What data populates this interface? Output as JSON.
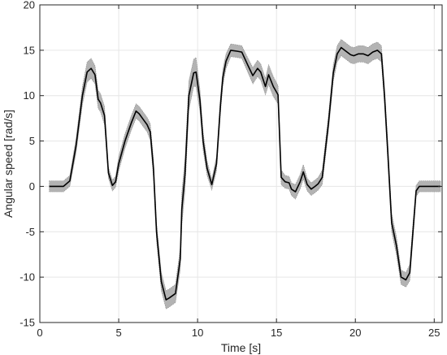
{
  "chart_data": {
    "type": "line",
    "title": "",
    "xlabel": "Time [s]",
    "ylabel": "Angular speed [rad/s]",
    "xlim": [
      0,
      25.5
    ],
    "ylim": [
      -15,
      20
    ],
    "xticks": [
      0,
      5,
      10,
      15,
      20,
      25
    ],
    "yticks": [
      -15,
      -10,
      -5,
      0,
      5,
      10,
      15,
      20
    ],
    "grid": true,
    "legend": "none",
    "colors": {
      "line": "#000000",
      "band": "#a6a6a6",
      "grid": "#e6e6e6",
      "axis": "#262626"
    },
    "series": [
      {
        "x": [
          0.6,
          1.5,
          1.9,
          2.3,
          2.7,
          3.0,
          3.25,
          3.5,
          3.7,
          3.85,
          4.1,
          4.35,
          4.6,
          4.8,
          5.0,
          5.4,
          5.8,
          6.1,
          6.3,
          6.55,
          6.8,
          7.0,
          7.2,
          7.4,
          7.7,
          8.0,
          8.2,
          8.6,
          8.9,
          9.0,
          9.2,
          9.45,
          9.75,
          9.9,
          10.15,
          10.35,
          10.6,
          10.9,
          11.2,
          11.45,
          11.6,
          11.8,
          12.1,
          12.5,
          12.8,
          13.2,
          13.5,
          13.8,
          14.0,
          14.3,
          14.5,
          14.8,
          15.1,
          15.3,
          15.55,
          15.8,
          15.95,
          16.2,
          16.5,
          16.7,
          16.95,
          17.2,
          17.45,
          17.65,
          17.9,
          18.3,
          18.6,
          18.85,
          19.1,
          19.4,
          19.7,
          19.9,
          20.2,
          20.5,
          20.8,
          21.1,
          21.4,
          21.65,
          21.85,
          22.05,
          22.3,
          22.6,
          22.9,
          23.2,
          23.45,
          23.65,
          23.85,
          24.05,
          24.3,
          24.6,
          25.0,
          25.4
        ],
        "y": [
          0,
          0,
          0.6,
          4.5,
          10.0,
          12.6,
          13.0,
          12.3,
          9.6,
          9.2,
          7.8,
          1.5,
          0.1,
          0.5,
          2.5,
          5.0,
          7.0,
          8.3,
          8.0,
          7.4,
          6.8,
          6.0,
          2.0,
          -5.0,
          -10.5,
          -12.5,
          -12.3,
          -11.8,
          -8.0,
          -2.5,
          1.3,
          10.0,
          12.5,
          12.6,
          9.5,
          5.0,
          2.0,
          0.2,
          2.5,
          9.0,
          12.0,
          13.8,
          15.0,
          14.9,
          14.8,
          13.3,
          12.2,
          13.0,
          12.6,
          11.0,
          12.3,
          11.0,
          10.1,
          1.0,
          0.5,
          0.4,
          -0.3,
          -0.6,
          0.5,
          1.6,
          0.2,
          -0.3,
          0.0,
          0.3,
          1.0,
          7.0,
          12.5,
          14.6,
          15.3,
          14.9,
          14.5,
          14.4,
          14.6,
          14.6,
          14.4,
          14.8,
          15.0,
          14.6,
          10.0,
          4.0,
          -4.0,
          -6.5,
          -10.0,
          -10.3,
          -9.5,
          -5.0,
          -0.5,
          0.0,
          0.0,
          0.0,
          0.0,
          0.0
        ],
        "band": [
          0.6,
          0.6,
          0.6,
          0.8,
          1.0,
          1.1,
          1.1,
          1.0,
          1.0,
          1.0,
          1.0,
          0.6,
          0.6,
          0.6,
          0.8,
          0.8,
          0.8,
          0.8,
          0.8,
          0.8,
          0.8,
          0.9,
          1.0,
          1.0,
          1.0,
          1.0,
          1.0,
          1.0,
          1.2,
          1.8,
          1.8,
          1.6,
          1.5,
          1.6,
          1.2,
          1.0,
          0.8,
          0.6,
          0.8,
          0.9,
          0.9,
          0.8,
          0.7,
          0.7,
          0.7,
          0.8,
          0.9,
          0.9,
          0.9,
          0.9,
          1.1,
          1.1,
          1.0,
          0.8,
          0.7,
          0.7,
          0.7,
          0.8,
          0.8,
          0.8,
          0.7,
          0.7,
          0.7,
          0.7,
          0.8,
          0.9,
          0.9,
          0.9,
          0.9,
          0.9,
          0.9,
          0.9,
          0.9,
          0.9,
          0.9,
          0.9,
          0.9,
          0.9,
          1.0,
          1.1,
          1.0,
          1.0,
          0.8,
          0.8,
          0.9,
          0.9,
          0.6,
          0.6,
          0.6,
          0.6,
          0.6,
          0.6
        ]
      }
    ]
  }
}
